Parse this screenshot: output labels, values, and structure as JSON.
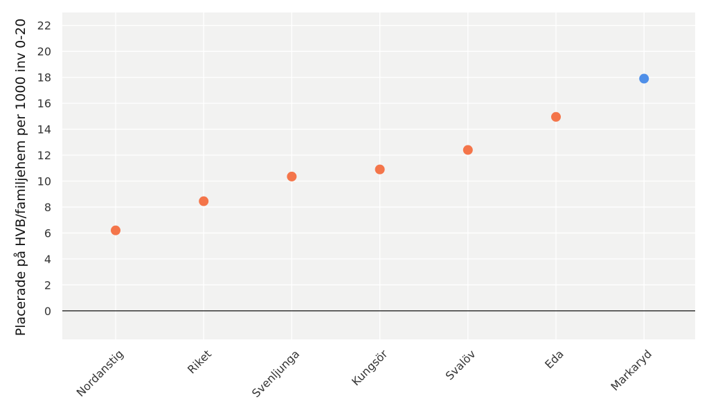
{
  "chart_data": {
    "type": "scatter",
    "categories": [
      "Nordanstig",
      "Riket",
      "Svenljunga",
      "Kungsör",
      "Svalöv",
      "Eda",
      "Markaryd"
    ],
    "values": [
      6.2,
      8.45,
      10.35,
      10.9,
      12.4,
      14.95,
      17.9
    ],
    "point_colors": [
      "#f4754a",
      "#f4754a",
      "#f4754a",
      "#f4754a",
      "#f4754a",
      "#f4754a",
      "#4f8fe8"
    ],
    "ylabel": "Placerade på HVB/familjehem per 1000 inv 0-20",
    "ylim": [
      -2.2,
      23
    ],
    "yticks": [
      0,
      2,
      4,
      6,
      8,
      10,
      12,
      14,
      16,
      18,
      20,
      22
    ],
    "grid": true,
    "background_color": "#f2f2f1",
    "zero_line_color": "#222222"
  }
}
